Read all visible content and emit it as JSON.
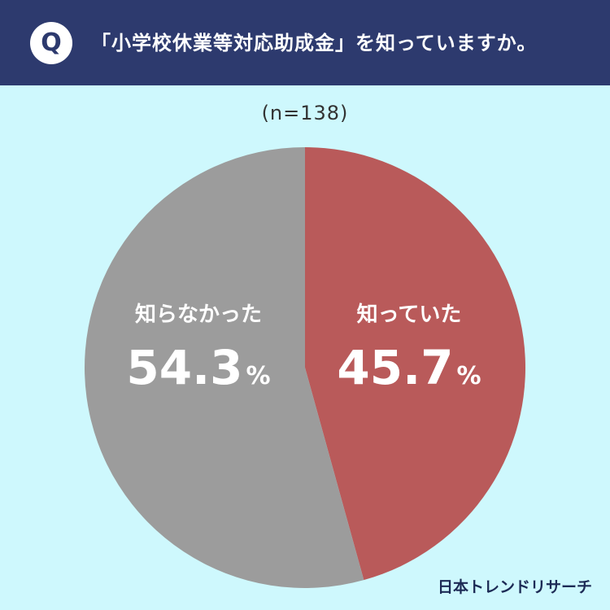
{
  "header": {
    "badge": "Q",
    "question": "「小学校休業等対応助成金」を知っていますか。"
  },
  "sample_size": "(n=138)",
  "brand": "日本トレンドリサーチ",
  "colors": {
    "header_bg": "#2d3a6e",
    "page_bg": "#cef8fd",
    "known": "#b95a5a",
    "unknown": "#9c9c9c"
  },
  "chart_data": {
    "type": "pie",
    "start": "12 o'clock, clockwise",
    "slices": [
      {
        "label": "知っていた",
        "value": 45.7,
        "display": "45.7",
        "unit": "%",
        "color": "#b95a5a"
      },
      {
        "label": "知らなかった",
        "value": 54.3,
        "display": "54.3",
        "unit": "%",
        "color": "#9c9c9c"
      }
    ]
  }
}
